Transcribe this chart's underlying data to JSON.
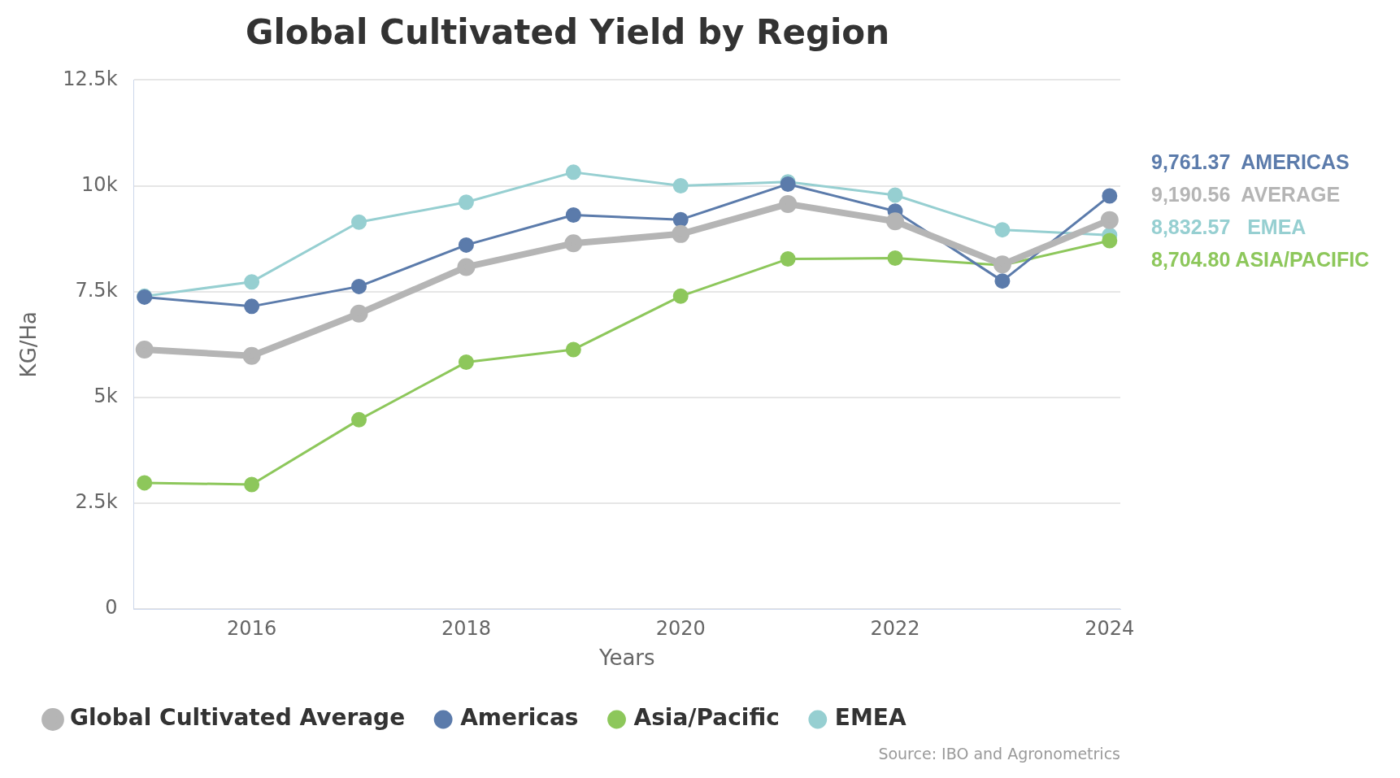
{
  "chart_data": {
    "type": "line",
    "title": "Global Cultivated Yield by Region",
    "xlabel": "Years",
    "ylabel": "KG/Ha",
    "x": [
      2015,
      2016,
      2017,
      2018,
      2019,
      2020,
      2021,
      2022,
      2023,
      2024
    ],
    "series": [
      {
        "name": "Global Cultivated Average",
        "color": "#b5b5b5",
        "values": [
          6130,
          5980,
          6980,
          8080,
          8640,
          8860,
          9570,
          9160,
          8140,
          9190.56
        ],
        "value_labels": [
          null,
          null,
          null,
          null,
          null,
          null,
          null,
          null,
          null,
          "9,190.56  AVERAGE"
        ]
      },
      {
        "name": "Americas",
        "color": "#5b7bab",
        "values": [
          7370,
          7150,
          7620,
          8600,
          9310,
          9200,
          10040,
          9400,
          7750,
          9761.37
        ],
        "value_labels": [
          null,
          null,
          null,
          null,
          null,
          null,
          null,
          null,
          null,
          "9,761.37  AMERICAS"
        ]
      },
      {
        "name": "Asia/Pacific",
        "color": "#8dc75b",
        "values": [
          2980,
          2940,
          4470,
          5830,
          6130,
          7390,
          8270,
          8290,
          8120,
          8704.8
        ],
        "value_labels": [
          null,
          null,
          null,
          null,
          null,
          null,
          null,
          null,
          null,
          "8,704.80 ASIA/PACIFIC"
        ]
      },
      {
        "name": "EMEA",
        "color": "#96cfd1",
        "values": [
          7390,
          7730,
          9140,
          9610,
          10320,
          10000,
          10090,
          9780,
          8960,
          8832.57
        ],
        "value_labels": [
          null,
          null,
          null,
          null,
          null,
          null,
          null,
          null,
          null,
          "8,832.57   EMEA"
        ]
      }
    ],
    "xlim": [
      2014.9,
      2024.1
    ],
    "xticks": [
      2016,
      2018,
      2020,
      2022,
      2024
    ],
    "ylim": [
      0,
      12500
    ],
    "yticks": [
      0,
      {
        "value": 2500,
        "label": "2.5k"
      },
      {
        "value": 5000,
        "label": "5k"
      },
      {
        "value": 7500,
        "label": "7.5k"
      },
      {
        "value": 10000,
        "label": "10k"
      },
      {
        "value": 12500,
        "label": "12.5k"
      }
    ],
    "grid": "y",
    "legend": "bottom",
    "marker": "circle",
    "line_style": "solid",
    "annotations": [
      "Source: IBO and Agronometrics"
    ]
  }
}
